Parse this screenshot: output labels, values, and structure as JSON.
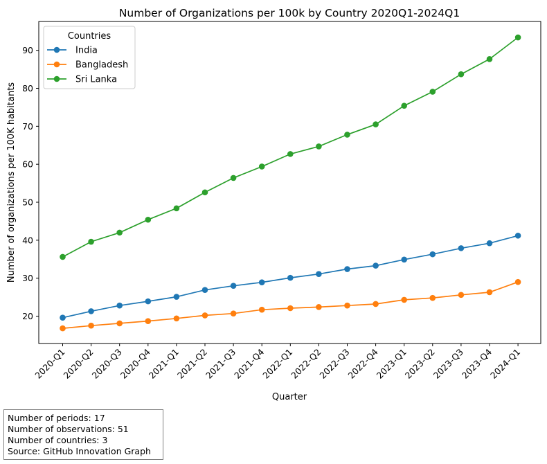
{
  "chart_data": {
    "type": "line",
    "title": "Number of Organizations per 100k by Country 2020Q1-2024Q1",
    "xlabel": "Quarter",
    "ylabel": "Number of organizations per 100K habitants",
    "categories": [
      "2020-Q1",
      "2020-Q2",
      "2020-Q3",
      "2020-Q4",
      "2021-Q1",
      "2021-Q2",
      "2021-Q3",
      "2021-Q4",
      "2022-Q1",
      "2022-Q2",
      "2022-Q3",
      "2022-Q4",
      "2023-Q1",
      "2023-Q2",
      "2023-Q3",
      "2023-Q4",
      "2024-Q1"
    ],
    "ylim": [
      12.8,
      97.6
    ],
    "yticks": [
      20,
      30,
      40,
      50,
      60,
      70,
      80,
      90
    ],
    "grid": false,
    "legend": {
      "title": "Countries",
      "placement": "top-left"
    },
    "series": [
      {
        "name": "India",
        "color": "#1f77b4",
        "values": [
          19.6,
          21.3,
          22.8,
          23.9,
          25.1,
          26.9,
          28.0,
          28.9,
          30.1,
          31.1,
          32.4,
          33.3,
          34.9,
          36.3,
          37.9,
          39.2,
          41.2
        ]
      },
      {
        "name": "Bangladesh",
        "color": "#ff7f0e",
        "values": [
          16.8,
          17.5,
          18.1,
          18.7,
          19.4,
          20.2,
          20.7,
          21.7,
          22.1,
          22.4,
          22.8,
          23.2,
          24.3,
          24.8,
          25.6,
          26.3,
          29.0
        ]
      },
      {
        "name": "Sri Lanka",
        "color": "#2ca02c",
        "values": [
          35.6,
          39.6,
          42.0,
          45.4,
          48.4,
          52.6,
          56.4,
          59.4,
          62.7,
          64.7,
          67.8,
          70.5,
          75.4,
          79.1,
          83.7,
          87.7,
          93.4
        ]
      }
    ]
  },
  "summary_box": {
    "lines": [
      {
        "label": "Number of periods:",
        "value": "17"
      },
      {
        "label": "Number of observations:",
        "value": "51"
      },
      {
        "label": "Number of countries:",
        "value": "3"
      },
      {
        "label": "Source:",
        "value": "GitHub Innovation Graph"
      }
    ]
  }
}
